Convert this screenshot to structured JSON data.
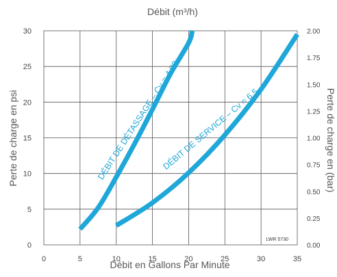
{
  "chart_data": {
    "type": "line",
    "top_axis_title": "Débit (m³/h)",
    "xlabel": "Débit en Gallons Par Minute",
    "ylabel": "Perte de charge en psi",
    "y2label": "Perte de charge en (bar)",
    "xlim": [
      0,
      35
    ],
    "ylim": [
      0,
      30
    ],
    "y2lim": [
      0,
      2.0
    ],
    "x_ticks": [
      "0",
      "5",
      "10",
      "15",
      "20",
      "25",
      "30",
      "35"
    ],
    "y_ticks": [
      "0",
      "5",
      "10",
      "15",
      "20",
      "25",
      "30"
    ],
    "y2_ticks": [
      "0.00",
      "0.25",
      "0.50",
      "0.75",
      "1.00",
      "1.25",
      "1.50",
      "1.75",
      "2.00"
    ],
    "grid": true,
    "line_color": "#1ea7d8",
    "reference_note": "LWR 5730",
    "series": [
      {
        "name": "DÉBIT DE DÉTASSAGE – Cv = 4.00",
        "x": [
          5,
          7.5,
          10,
          12.5,
          15,
          17.5,
          20,
          20.5
        ],
        "y": [
          2.2,
          5.2,
          9.5,
          14.1,
          19.0,
          24.0,
          28.3,
          30.0
        ]
      },
      {
        "name": "DÉBIT DE SERVICE – Cv = 6.5",
        "x": [
          10,
          15,
          20,
          25,
          30,
          35
        ],
        "y": [
          2.7,
          5.9,
          10.1,
          15.4,
          21.8,
          29.5
        ]
      }
    ]
  }
}
